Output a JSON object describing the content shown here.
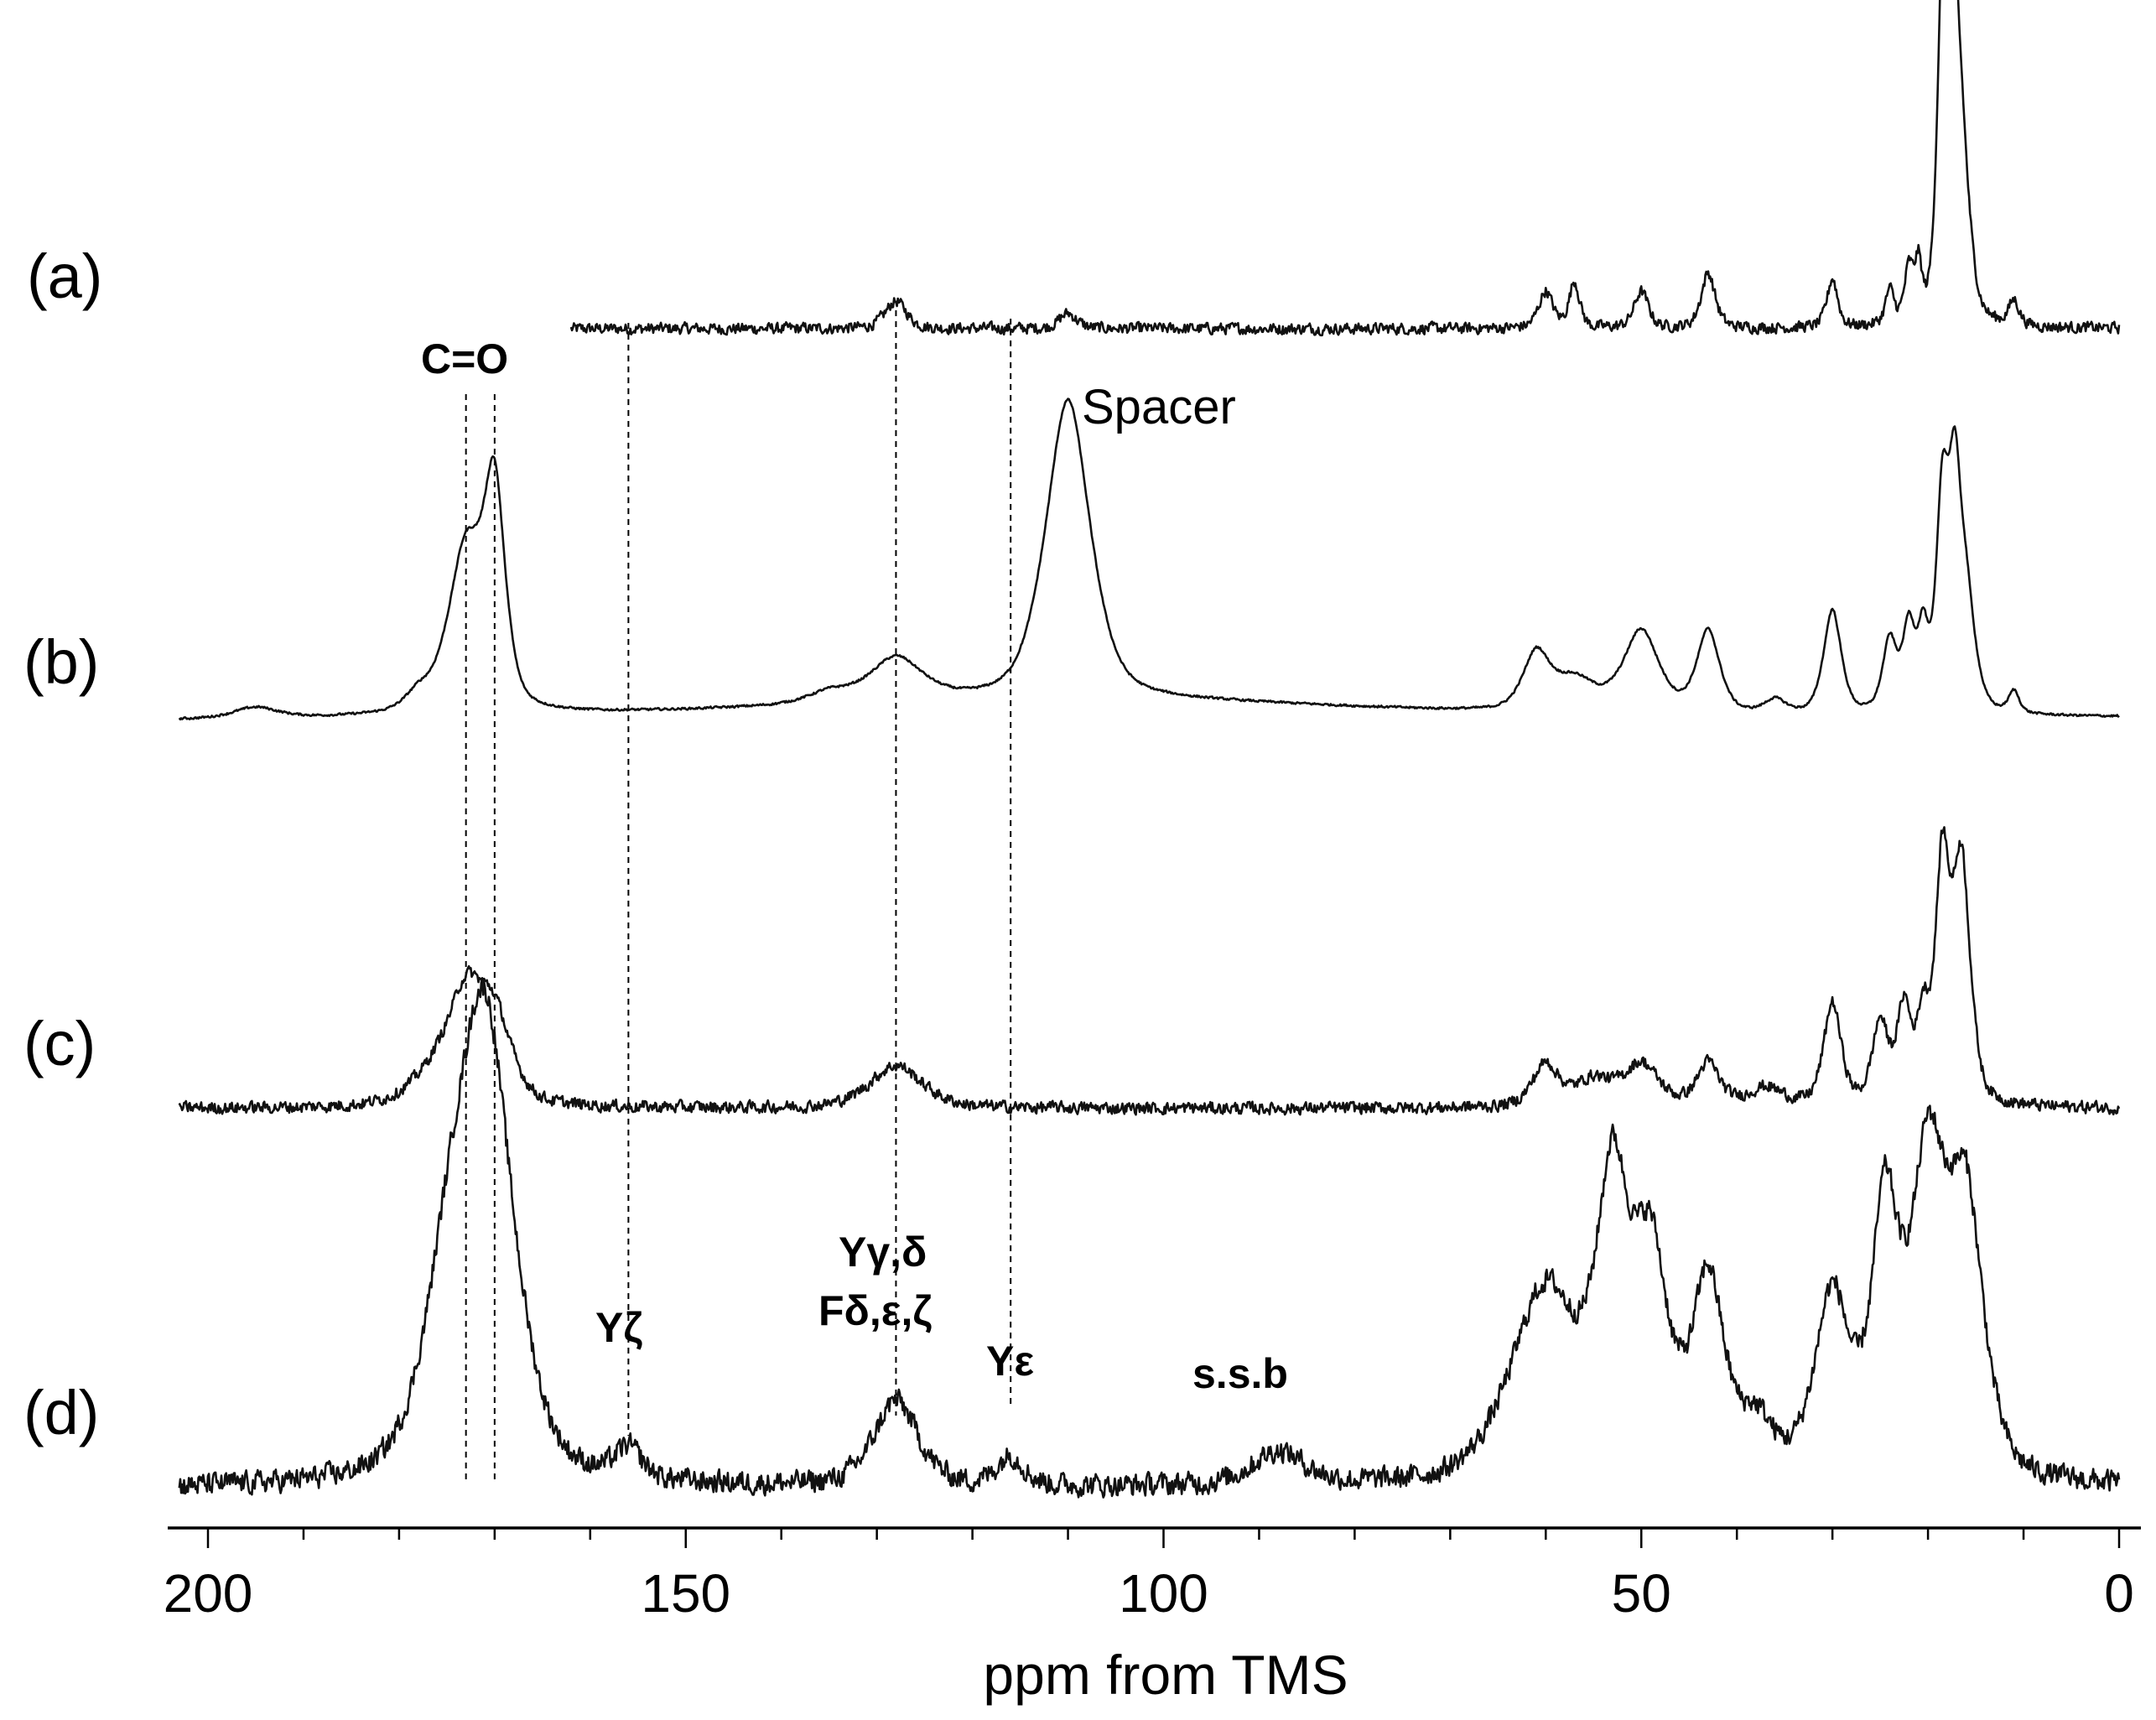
{
  "chart_data": {
    "type": "line",
    "xlabel": "ppm from TMS",
    "xlim": [
      200,
      0
    ],
    "x_reversed": true,
    "major_ticks": [
      200,
      150,
      100,
      50,
      0
    ],
    "tick_labels": [
      "200",
      "150",
      "100",
      "50",
      "0"
    ],
    "grid": false,
    "series": [
      {
        "name": "(a)",
        "x_range": [
          162,
          0
        ],
        "noise": 0.018,
        "peaks": [
          {
            "ppm": 128,
            "height": 0.09,
            "width": 1.2
          },
          {
            "ppm": 110,
            "height": 0.05,
            "width": 1.0
          },
          {
            "ppm": 60,
            "height": 0.12,
            "width": 0.8
          },
          {
            "ppm": 57,
            "height": 0.15,
            "width": 0.6
          },
          {
            "ppm": 50,
            "height": 0.12,
            "width": 0.8
          },
          {
            "ppm": 43,
            "height": 0.18,
            "width": 0.8
          },
          {
            "ppm": 30,
            "height": 0.16,
            "width": 0.6
          },
          {
            "ppm": 24,
            "height": 0.11,
            "width": 0.5
          },
          {
            "ppm": 22,
            "height": 0.17,
            "width": 0.5
          },
          {
            "ppm": 21,
            "height": 0.17,
            "width": 0.4
          },
          {
            "ppm": 18.5,
            "height": 0.98,
            "width": 0.6
          },
          {
            "ppm": 17.5,
            "height": 1.0,
            "width": 0.6
          },
          {
            "ppm": 16.5,
            "height": 0.55,
            "width": 0.9
          },
          {
            "ppm": 11,
            "height": 0.08,
            "width": 0.6
          }
        ]
      },
      {
        "name": "(b)",
        "x_range": [
          203,
          0
        ],
        "noise": 0.004,
        "peaks": [
          {
            "ppm": 195,
            "height": 0.04,
            "width": 2.5
          },
          {
            "ppm": 178,
            "height": 0.06,
            "width": 1.5
          },
          {
            "ppm": 173,
            "height": 0.6,
            "width": 2.0
          },
          {
            "ppm": 170,
            "height": 0.75,
            "width": 1.2
          },
          {
            "ppm": 135,
            "height": 0.04,
            "width": 2.5
          },
          {
            "ppm": 128,
            "height": 0.16,
            "width": 3.0
          },
          {
            "ppm": 110,
            "height": 1.1,
            "width": 2.5
          },
          {
            "ppm": 61,
            "height": 0.2,
            "width": 1.5
          },
          {
            "ppm": 57,
            "height": 0.12,
            "width": 2.5
          },
          {
            "ppm": 50,
            "height": 0.3,
            "width": 2.0
          },
          {
            "ppm": 43,
            "height": 0.3,
            "width": 1.3
          },
          {
            "ppm": 36,
            "height": 0.05,
            "width": 1.2
          },
          {
            "ppm": 30,
            "height": 0.38,
            "width": 1.0
          },
          {
            "ppm": 24,
            "height": 0.26,
            "width": 0.8
          },
          {
            "ppm": 22,
            "height": 0.3,
            "width": 0.7
          },
          {
            "ppm": 20.5,
            "height": 0.27,
            "width": 0.6
          },
          {
            "ppm": 18.5,
            "height": 0.75,
            "width": 0.7
          },
          {
            "ppm": 17.2,
            "height": 0.72,
            "width": 0.7
          },
          {
            "ppm": 16,
            "height": 0.4,
            "width": 1.0
          },
          {
            "ppm": 11,
            "height": 0.08,
            "width": 0.6
          }
        ]
      },
      {
        "name": "(c)",
        "x_range": [
          203,
          0
        ],
        "noise": 0.022,
        "peaks": [
          {
            "ppm": 176,
            "height": 0.12,
            "width": 3.0
          },
          {
            "ppm": 173,
            "height": 0.34,
            "width": 2.0
          },
          {
            "ppm": 170,
            "height": 0.3,
            "width": 2.0
          },
          {
            "ppm": 128,
            "height": 0.16,
            "width": 3.0
          },
          {
            "ppm": 60,
            "height": 0.16,
            "width": 1.5
          },
          {
            "ppm": 55,
            "height": 0.1,
            "width": 2.0
          },
          {
            "ppm": 50,
            "height": 0.16,
            "width": 2.0
          },
          {
            "ppm": 43,
            "height": 0.16,
            "width": 1.3
          },
          {
            "ppm": 37,
            "height": 0.07,
            "width": 2.0
          },
          {
            "ppm": 30,
            "height": 0.38,
            "width": 1.0
          },
          {
            "ppm": 25,
            "height": 0.3,
            "width": 0.9
          },
          {
            "ppm": 22.5,
            "height": 0.35,
            "width": 0.8
          },
          {
            "ppm": 20.5,
            "height": 0.3,
            "width": 0.7
          },
          {
            "ppm": 18.5,
            "height": 0.85,
            "width": 0.8
          },
          {
            "ppm": 16.5,
            "height": 0.9,
            "width": 1.0
          }
        ]
      },
      {
        "name": "(d)",
        "x_range": [
          203,
          0
        ],
        "noise": 0.026,
        "peaks": [
          {
            "ppm": 175,
            "height": 0.3,
            "width": 3.0
          },
          {
            "ppm": 171,
            "height": 1.05,
            "width": 3.2
          },
          {
            "ppm": 156,
            "height": 0.07,
            "width": 1.5
          },
          {
            "ppm": 128,
            "height": 0.2,
            "width": 2.5
          },
          {
            "ppm": 116,
            "height": 0.07,
            "width": 1.5
          },
          {
            "ppm": 88,
            "height": 0.08,
            "width": 3.0
          },
          {
            "ppm": 60,
            "height": 0.45,
            "width": 4.0
          },
          {
            "ppm": 53,
            "height": 0.62,
            "width": 1.8
          },
          {
            "ppm": 49,
            "height": 0.5,
            "width": 2.0
          },
          {
            "ppm": 43,
            "height": 0.45,
            "width": 1.8
          },
          {
            "ppm": 38,
            "height": 0.12,
            "width": 2.0
          },
          {
            "ppm": 30,
            "height": 0.42,
            "width": 2.0
          },
          {
            "ppm": 24.5,
            "height": 0.6,
            "width": 1.5
          },
          {
            "ppm": 20,
            "height": 0.72,
            "width": 2.0
          },
          {
            "ppm": 16,
            "height": 0.62,
            "width": 2.0
          }
        ]
      }
    ],
    "annotations": [
      {
        "text": "C=O",
        "ppm": 172
      },
      {
        "text": "Spacer",
        "ppm": 110
      },
      {
        "text": "Yζ",
        "ppm": 156
      },
      {
        "text": "Yγ,δ",
        "ppm": 128
      },
      {
        "text": "Fδ,ε,ζ",
        "ppm": 128
      },
      {
        "text": "Yε",
        "ppm": 116
      },
      {
        "text": "s.s.b",
        "ppm": 88
      }
    ],
    "guide_lines_ppm": [
      173,
      170,
      156,
      128,
      116
    ]
  }
}
